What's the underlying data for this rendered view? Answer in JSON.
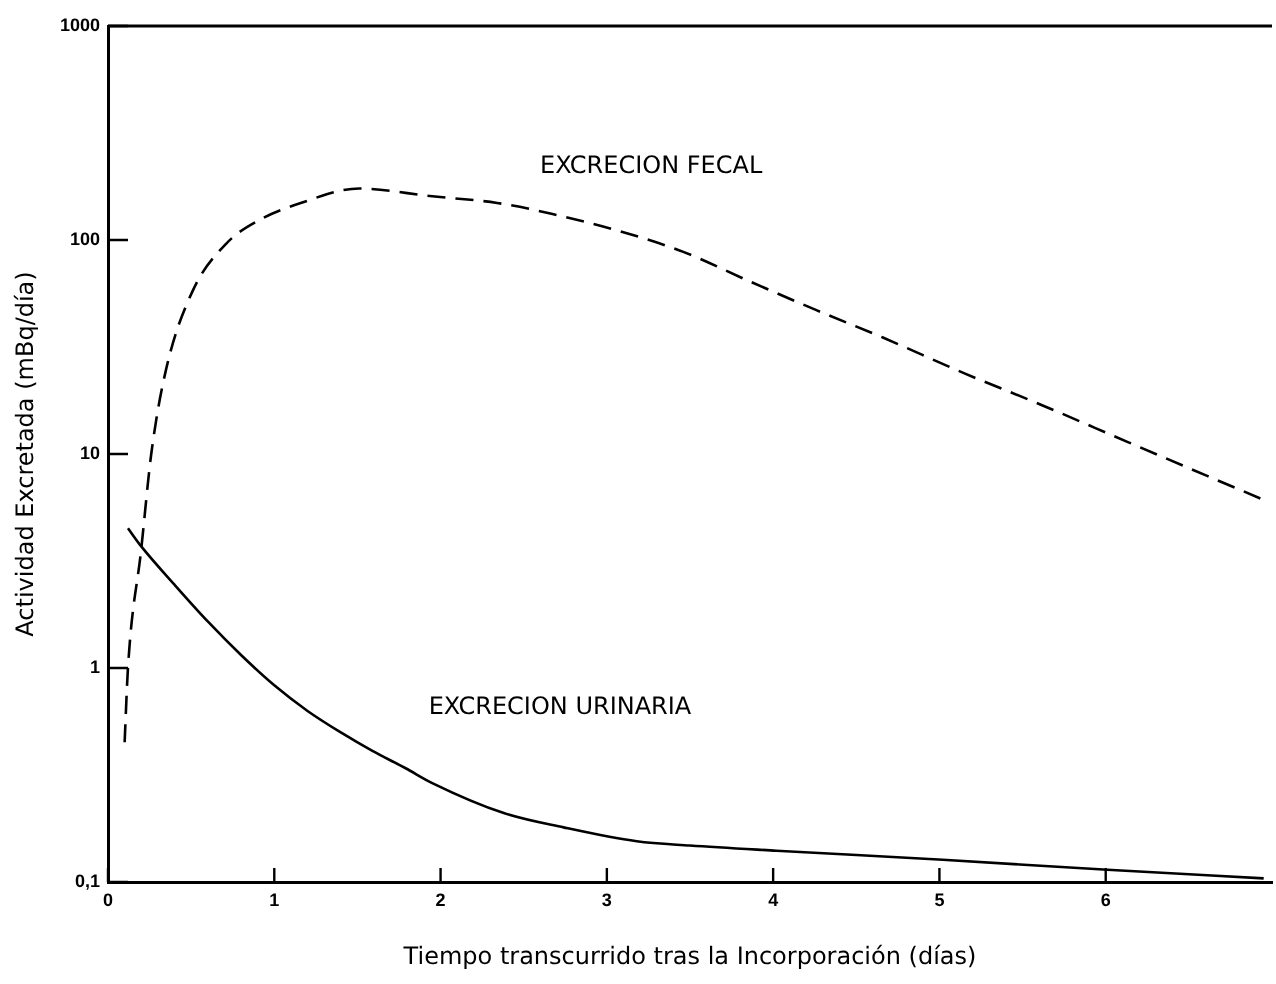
{
  "chart_data": {
    "type": "line",
    "xlabel": "Tiempo transcurrido tras la Incorporación (días)",
    "ylabel": "Actividad Excretada (mBq/día)",
    "log": "y",
    "xlim": [
      0,
      7
    ],
    "xticks": [
      0,
      1,
      2,
      3,
      4,
      5,
      6
    ],
    "ylim": [
      0.1,
      1000
    ],
    "yticks": [
      {
        "value": 0.1,
        "label": "0,1"
      },
      1,
      10,
      100,
      1000
    ],
    "legend": false,
    "marker": "none",
    "series": [
      {
        "name": "EXCRECION FECAL",
        "color": "#000000",
        "line_style": "dashed",
        "x": [
          0.1,
          0.12,
          0.2,
          0.26,
          0.35,
          0.51,
          0.71,
          0.91,
          1.15,
          1.51,
          1.95,
          2.34,
          2.66,
          3.06,
          3.46,
          3.86,
          4.26,
          4.66,
          5.14,
          5.61,
          6.13,
          6.61,
          6.93
        ],
        "values": [
          0.45,
          1,
          3.6,
          10,
          25,
          58,
          96,
          124,
          148,
          174,
          160,
          149,
          133,
          111,
          88,
          64,
          47,
          35,
          24,
          17,
          11.4,
          7.9,
          6.2
        ]
      },
      {
        "name": "EXCRECION URINARIA",
        "color": "#000000",
        "line_style": "solid",
        "x": [
          0.12,
          0.2,
          0.4,
          0.6,
          0.8,
          1,
          1.2,
          1.4,
          1.59,
          1.79,
          1.95,
          2.38,
          2.74,
          3.18,
          3.5,
          4.02,
          5.02,
          6.01,
          6.95
        ],
        "values": [
          4.5,
          3.7,
          2.45,
          1.65,
          1.15,
          0.83,
          0.63,
          0.5,
          0.41,
          0.34,
          0.29,
          0.21,
          0.18,
          0.155,
          0.148,
          0.14,
          0.127,
          0.114,
          0.104
        ]
      }
    ]
  }
}
